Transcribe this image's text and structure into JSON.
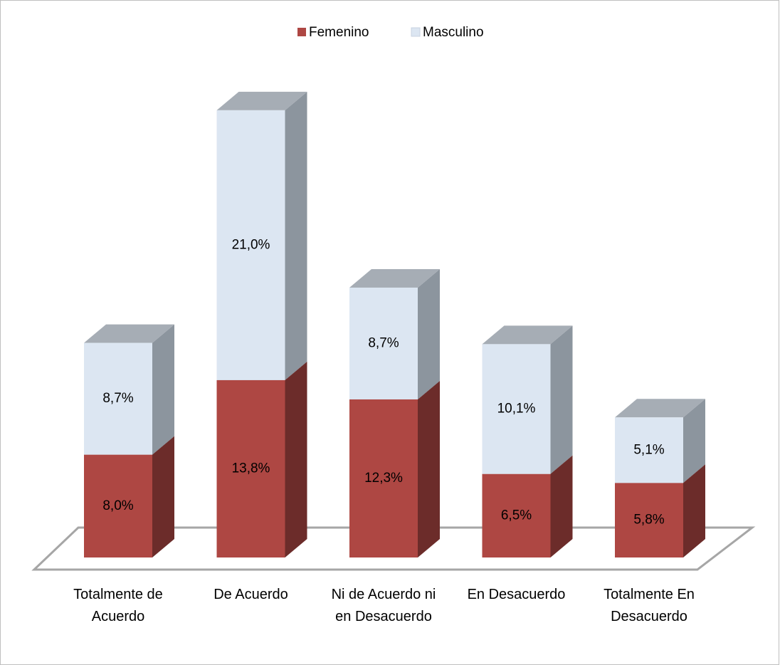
{
  "chart_data": {
    "type": "bar",
    "stacked": true,
    "categories": [
      "Totalmente de Acuerdo",
      "De Acuerdo",
      "Ni de Acuerdo ni en Desacuerdo",
      "En Desacuerdo",
      "Totalmente En Desacuerdo"
    ],
    "series": [
      {
        "name": "Femenino",
        "color": "#ae4743",
        "values": [
          8.0,
          13.8,
          12.3,
          6.5,
          5.8
        ],
        "value_labels": [
          "8,0%",
          "13,8%",
          "12,3%",
          "6,5%",
          "5,8%"
        ]
      },
      {
        "name": "Masculino",
        "color": "#dce6f2",
        "values": [
          8.7,
          21.0,
          8.7,
          10.1,
          5.1
        ],
        "value_labels": [
          "8,7%",
          "21,0%",
          "8,7%",
          "10,1%",
          "5,1%"
        ]
      }
    ],
    "legend": "top"
  }
}
